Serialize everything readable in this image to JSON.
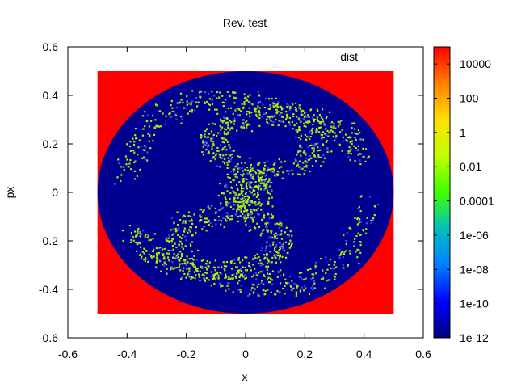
{
  "chart_data": {
    "type": "heatmap",
    "title": "Rev. test",
    "xlabel": "x",
    "ylabel": "px",
    "key_label": "dist",
    "xlim": [
      -0.6,
      0.6
    ],
    "ylim": [
      -0.6,
      0.6
    ],
    "x_ticks": [
      {
        "value": -0.6,
        "label": "-0.6"
      },
      {
        "value": -0.4,
        "label": "-0.4"
      },
      {
        "value": -0.2,
        "label": "-0.2"
      },
      {
        "value": 0,
        "label": "0"
      },
      {
        "value": 0.2,
        "label": "0.2"
      },
      {
        "value": 0.4,
        "label": "0.4"
      },
      {
        "value": 0.6,
        "label": "0.6"
      }
    ],
    "y_ticks": [
      {
        "value": -0.6,
        "label": "-0.6"
      },
      {
        "value": -0.4,
        "label": "-0.4"
      },
      {
        "value": -0.2,
        "label": "-0.2"
      },
      {
        "value": 0,
        "label": "0"
      },
      {
        "value": 0.2,
        "label": "0.2"
      },
      {
        "value": 0.4,
        "label": "0.4"
      },
      {
        "value": 0.6,
        "label": "0.6"
      }
    ],
    "colorbar": {
      "scale": "log",
      "range": [
        1e-12,
        100000
      ],
      "ticks": [
        {
          "value": 10000,
          "label": "10000"
        },
        {
          "value": 100,
          "label": "100"
        },
        {
          "value": 1,
          "label": "1"
        },
        {
          "value": 0.01,
          "label": "0.01"
        },
        {
          "value": 0.0001,
          "label": "0.0001"
        },
        {
          "value": 1e-06,
          "label": "1e-06"
        },
        {
          "value": 1e-08,
          "label": "1e-08"
        },
        {
          "value": 1e-10,
          "label": "1e-10"
        },
        {
          "value": 1e-12,
          "label": "1e-12"
        }
      ],
      "colors": [
        "#000080",
        "#0000ff",
        "#0080ff",
        "#00c0c0",
        "#40ff00",
        "#c0ff00",
        "#ffe000",
        "#ff8000",
        "#ff0000"
      ]
    },
    "field": {
      "grid_x": [
        -0.5,
        0.5
      ],
      "grid_y": [
        -0.5,
        0.5
      ],
      "outside_disk_color": "#ff0000",
      "inner_color": "#000090",
      "chaos_color": "#a8f000",
      "disk_radius": 0.5
    }
  }
}
